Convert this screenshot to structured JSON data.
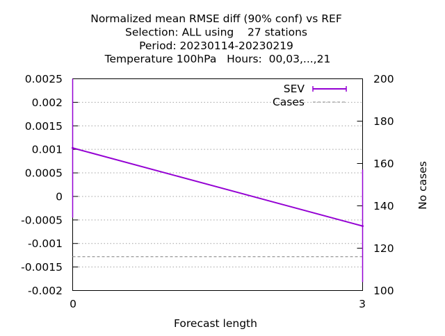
{
  "chart_data": {
    "type": "line",
    "title_lines": [
      "Normalized mean RMSE diff (90% conf) vs REF",
      "Selection: ALL using    27 stations",
      "Period: 20230114-20230219",
      "Temperature 100hPa   Hours:  00,03,...,21"
    ],
    "xlabel": "Forecast length",
    "ylabel": "",
    "y2label": "No cases",
    "xlim": [
      0,
      3
    ],
    "ylim": [
      -0.002,
      0.0025
    ],
    "y2lim": [
      100,
      200
    ],
    "x_ticks": [
      "0",
      "3"
    ],
    "y_ticks": [
      "0.0025",
      "0.002",
      "0.0015",
      "0.001",
      "0.0005",
      "0",
      "-0.0005",
      "-0.001",
      "-0.0015",
      "-0.002"
    ],
    "y2_ticks": [
      "200",
      "180",
      "160",
      "140",
      "120",
      "100"
    ],
    "grid": true,
    "legend_position": "top-right",
    "series": [
      {
        "name": "SEV",
        "color": "#9400d3",
        "x": [
          0,
          3
        ],
        "values": [
          0.00103,
          -0.00063
        ],
        "err_low": [
          -0.00045,
          -0.00182
        ],
        "err_high": [
          0.0025,
          0.00057
        ]
      },
      {
        "name": "Cases",
        "color": "#a0a0a0",
        "axis": "y2",
        "x": [
          0,
          3
        ],
        "values": [
          116,
          116
        ]
      }
    ]
  }
}
